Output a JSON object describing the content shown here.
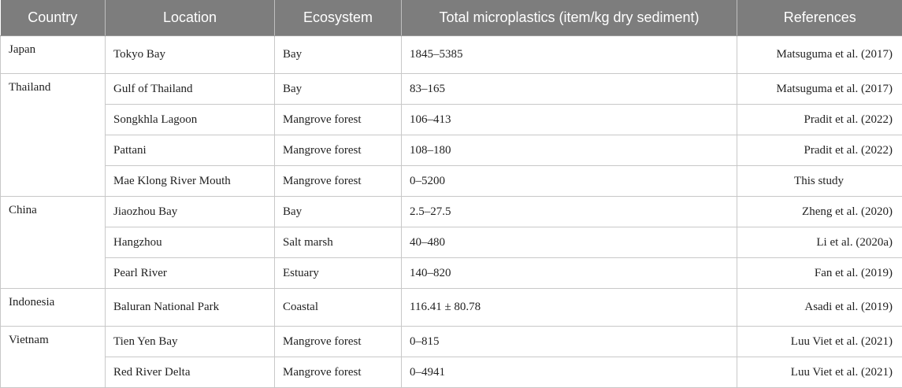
{
  "table": {
    "headers": [
      "Country",
      "Location",
      "Ecosystem",
      "Total microplastics (item/kg dry sediment)",
      "References"
    ],
    "rows": [
      {
        "country": "Japan",
        "location": "Tokyo Bay",
        "ecosystem": "Bay",
        "total": "1845–5385",
        "reference": "Matsuguma et al. (2017)"
      },
      {
        "country": "Thailand",
        "location": "Gulf of Thailand",
        "ecosystem": "Bay",
        "total": "83–165",
        "reference": "Matsuguma et al. (2017)"
      },
      {
        "country": "",
        "location": "Songkhla Lagoon",
        "ecosystem": "Mangrove forest",
        "total": "106–413",
        "reference": "Pradit et al. (2022)"
      },
      {
        "country": "",
        "location": "Pattani",
        "ecosystem": "Mangrove forest",
        "total": "108–180",
        "reference": "Pradit et al. (2022)"
      },
      {
        "country": "",
        "location": "Mae Klong River Mouth",
        "ecosystem": "Mangrove forest",
        "total": "0–5200",
        "reference": "This study"
      },
      {
        "country": "China",
        "location": "Jiaozhou Bay",
        "ecosystem": "Bay",
        "total": "2.5–27.5",
        "reference": "Zheng et al. (2020)"
      },
      {
        "country": "",
        "location": "Hangzhou",
        "ecosystem": "Salt marsh",
        "total": "40–480",
        "reference": "Li et al. (2020a)"
      },
      {
        "country": "",
        "location": "Pearl River",
        "ecosystem": "Estuary",
        "total": "140–820",
        "reference": "Fan et al. (2019)"
      },
      {
        "country": "Indonesia",
        "location": "Baluran National Park",
        "ecosystem": "Coastal",
        "total": "116.41 ± 80.78",
        "reference": "Asadi et al. (2019)"
      },
      {
        "country": "Vietnam",
        "location": "Tien Yen Bay",
        "ecosystem": "Mangrove forest",
        "total": "0–815",
        "reference": "Luu Viet et al. (2021)"
      },
      {
        "country": "",
        "location": "Red River Delta",
        "ecosystem": "Mangrove forest",
        "total": "0–4941",
        "reference": "Luu Viet et al. (2021)"
      }
    ]
  }
}
